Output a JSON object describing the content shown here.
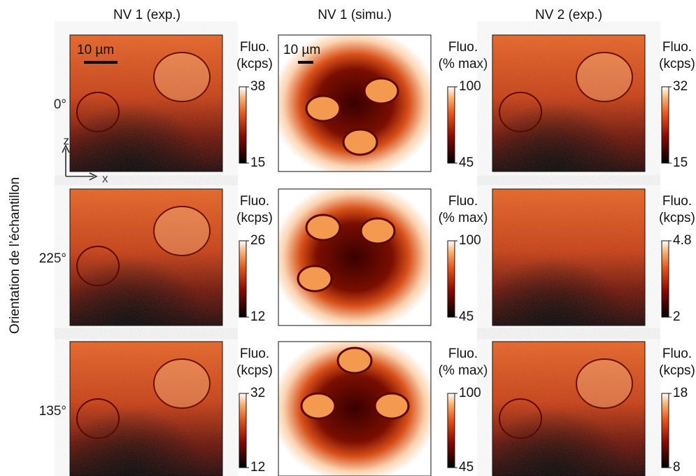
{
  "columns": [
    "NV 1 (exp.)",
    "NV 1 (simu.)",
    "NV 2 (exp.)"
  ],
  "row_axis_label": "Orientation de l’échantillon",
  "scale_bars": [
    "10 µm",
    "10 µm"
  ],
  "axes": {
    "z": "z",
    "x": "x"
  },
  "rows": [
    {
      "label": "0°",
      "panels": [
        {
          "cbar_title": [
            "Fluo.",
            "(kcps)"
          ],
          "cbar_max": "38",
          "cbar_min": "15"
        },
        {
          "cbar_title": [
            "Fluo.",
            "(% max)"
          ],
          "cbar_max": "100",
          "cbar_min": "45"
        },
        {
          "cbar_title": [
            "Fluo.",
            "(kcps)"
          ],
          "cbar_max": "32",
          "cbar_min": "15"
        }
      ]
    },
    {
      "label": "225°",
      "panels": [
        {
          "cbar_title": [
            "Fluo.",
            "(kcps)"
          ],
          "cbar_max": "26",
          "cbar_min": "12"
        },
        {
          "cbar_title": [
            "Fluo.",
            "(% max)"
          ],
          "cbar_max": "100",
          "cbar_min": "45"
        },
        {
          "cbar_title": [
            "Fluo.",
            "(kcps)"
          ],
          "cbar_max": "4.8",
          "cbar_min": "2"
        }
      ]
    },
    {
      "label": "135°",
      "panels": [
        {
          "cbar_title": [
            "Fluo.",
            "(kcps)"
          ],
          "cbar_max": "32",
          "cbar_min": "12"
        },
        {
          "cbar_title": [
            "Fluo.",
            "(% max)"
          ],
          "cbar_max": "100",
          "cbar_min": "45"
        },
        {
          "cbar_title": [
            "Fluo.",
            "(kcps)"
          ],
          "cbar_max": "18",
          "cbar_min": "8"
        }
      ]
    }
  ]
}
